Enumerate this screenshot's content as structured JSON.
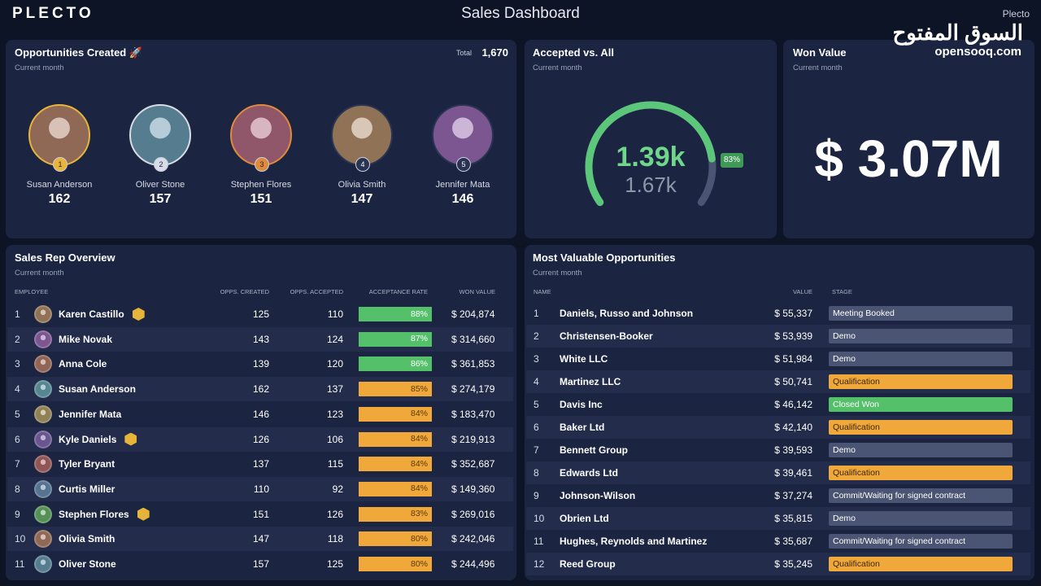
{
  "header": {
    "logo": "PLECTO",
    "title": "Sales Dashboard",
    "corner": "Plecto",
    "watermark": "السوق المفتوح",
    "watermark_sub": "opensooq.com"
  },
  "opportunities": {
    "title": "Opportunities Created 🚀",
    "subtitle": "Current month",
    "total_label": "Total",
    "total": "1,670",
    "people": [
      {
        "rank": 1,
        "name": "Susan Anderson",
        "value": 162,
        "ring": "#e8b53a"
      },
      {
        "rank": 2,
        "name": "Oliver Stone",
        "value": 157,
        "ring": "#d8dce6"
      },
      {
        "rank": 3,
        "name": "Stephen Flores",
        "value": 151,
        "ring": "#e08a3c"
      },
      {
        "rank": 4,
        "name": "Olivia Smith",
        "value": 147,
        "ring": "#2a3352"
      },
      {
        "rank": 5,
        "name": "Jennifer Mata",
        "value": 146,
        "ring": "#2a3352"
      }
    ]
  },
  "accepted": {
    "title": "Accepted vs. All",
    "subtitle": "Current month",
    "value": "1.39k",
    "total": "1.67k",
    "gauge": {
      "value": 83,
      "label": "83%"
    }
  },
  "won": {
    "title": "Won Value",
    "subtitle": "Current month",
    "value": "$ 3.07M"
  },
  "reps": {
    "title": "Sales Rep Overview",
    "subtitle": "Current month",
    "columns": [
      "EMPLOYEE",
      "OPPS. CREATED",
      "OPPS. ACCEPTED",
      "ACCEPTANCE RATE",
      "WON VALUE"
    ],
    "rows": [
      {
        "rank": 1,
        "name": "Karen Castillo",
        "created": 125,
        "accepted": 110,
        "rate": "88%",
        "won": "$ 204,874",
        "color": "#55c06a",
        "badge": true
      },
      {
        "rank": 2,
        "name": "Mike Novak",
        "created": 143,
        "accepted": 124,
        "rate": "87%",
        "won": "$ 314,660",
        "color": "#55c06a",
        "badge": false
      },
      {
        "rank": 3,
        "name": "Anna Cole",
        "created": 139,
        "accepted": 120,
        "rate": "86%",
        "won": "$ 361,853",
        "color": "#55c06a",
        "badge": false
      },
      {
        "rank": 4,
        "name": "Susan Anderson",
        "created": 162,
        "accepted": 137,
        "rate": "85%",
        "won": "$ 274,179",
        "color": "#f0a83a",
        "badge": false
      },
      {
        "rank": 5,
        "name": "Jennifer Mata",
        "created": 146,
        "accepted": 123,
        "rate": "84%",
        "won": "$ 183,470",
        "color": "#f0a83a",
        "badge": false
      },
      {
        "rank": 6,
        "name": "Kyle Daniels",
        "created": 126,
        "accepted": 106,
        "rate": "84%",
        "won": "$ 219,913",
        "color": "#f0a83a",
        "badge": true
      },
      {
        "rank": 7,
        "name": "Tyler Bryant",
        "created": 137,
        "accepted": 115,
        "rate": "84%",
        "won": "$ 352,687",
        "color": "#f0a83a",
        "badge": false
      },
      {
        "rank": 8,
        "name": "Curtis Miller",
        "created": 110,
        "accepted": 92,
        "rate": "84%",
        "won": "$ 149,360",
        "color": "#f0a83a",
        "badge": false
      },
      {
        "rank": 9,
        "name": "Stephen Flores",
        "created": 151,
        "accepted": 126,
        "rate": "83%",
        "won": "$ 269,016",
        "color": "#f0a83a",
        "badge": true
      },
      {
        "rank": 10,
        "name": "Olivia Smith",
        "created": 147,
        "accepted": 118,
        "rate": "80%",
        "won": "$ 242,046",
        "color": "#f0a83a",
        "badge": false
      },
      {
        "rank": 11,
        "name": "Oliver Stone",
        "created": 157,
        "accepted": 125,
        "rate": "80%",
        "won": "$ 244,496",
        "color": "#f0a83a",
        "badge": false
      }
    ]
  },
  "opps": {
    "title": "Most Valuable Opportunities",
    "subtitle": "Current month",
    "columns": [
      "NAME",
      "VALUE",
      "STAGE"
    ],
    "rows": [
      {
        "rank": 1,
        "name": "Daniels, Russo and Johnson",
        "value": "$ 55,337",
        "stage": "Meeting Booked",
        "color": "#4a5573"
      },
      {
        "rank": 2,
        "name": "Christensen-Booker",
        "value": "$ 53,939",
        "stage": "Demo",
        "color": "#4a5573"
      },
      {
        "rank": 3,
        "name": "White LLC",
        "value": "$ 51,984",
        "stage": "Demo",
        "color": "#4a5573"
      },
      {
        "rank": 4,
        "name": "Martinez LLC",
        "value": "$ 50,741",
        "stage": "Qualification",
        "color": "#f0a83a"
      },
      {
        "rank": 5,
        "name": "Davis Inc",
        "value": "$ 46,142",
        "stage": "Closed Won",
        "color": "#55c06a"
      },
      {
        "rank": 6,
        "name": "Baker Ltd",
        "value": "$ 42,140",
        "stage": "Qualification",
        "color": "#f0a83a"
      },
      {
        "rank": 7,
        "name": "Bennett Group",
        "value": "$ 39,593",
        "stage": "Demo",
        "color": "#4a5573"
      },
      {
        "rank": 8,
        "name": "Edwards Ltd",
        "value": "$ 39,461",
        "stage": "Qualification",
        "color": "#f0a83a"
      },
      {
        "rank": 9,
        "name": "Johnson-Wilson",
        "value": "$ 37,274",
        "stage": "Commit/Waiting for signed contract",
        "color": "#4a5573"
      },
      {
        "rank": 10,
        "name": "Obrien Ltd",
        "value": "$ 35,815",
        "stage": "Demo",
        "color": "#4a5573"
      },
      {
        "rank": 11,
        "name": "Hughes, Reynolds and Martinez",
        "value": "$ 35,687",
        "stage": "Commit/Waiting for signed contract",
        "color": "#4a5573"
      },
      {
        "rank": 12,
        "name": "Reed Group",
        "value": "$ 35,245",
        "stage": "Qualification",
        "color": "#f0a83a"
      }
    ]
  }
}
